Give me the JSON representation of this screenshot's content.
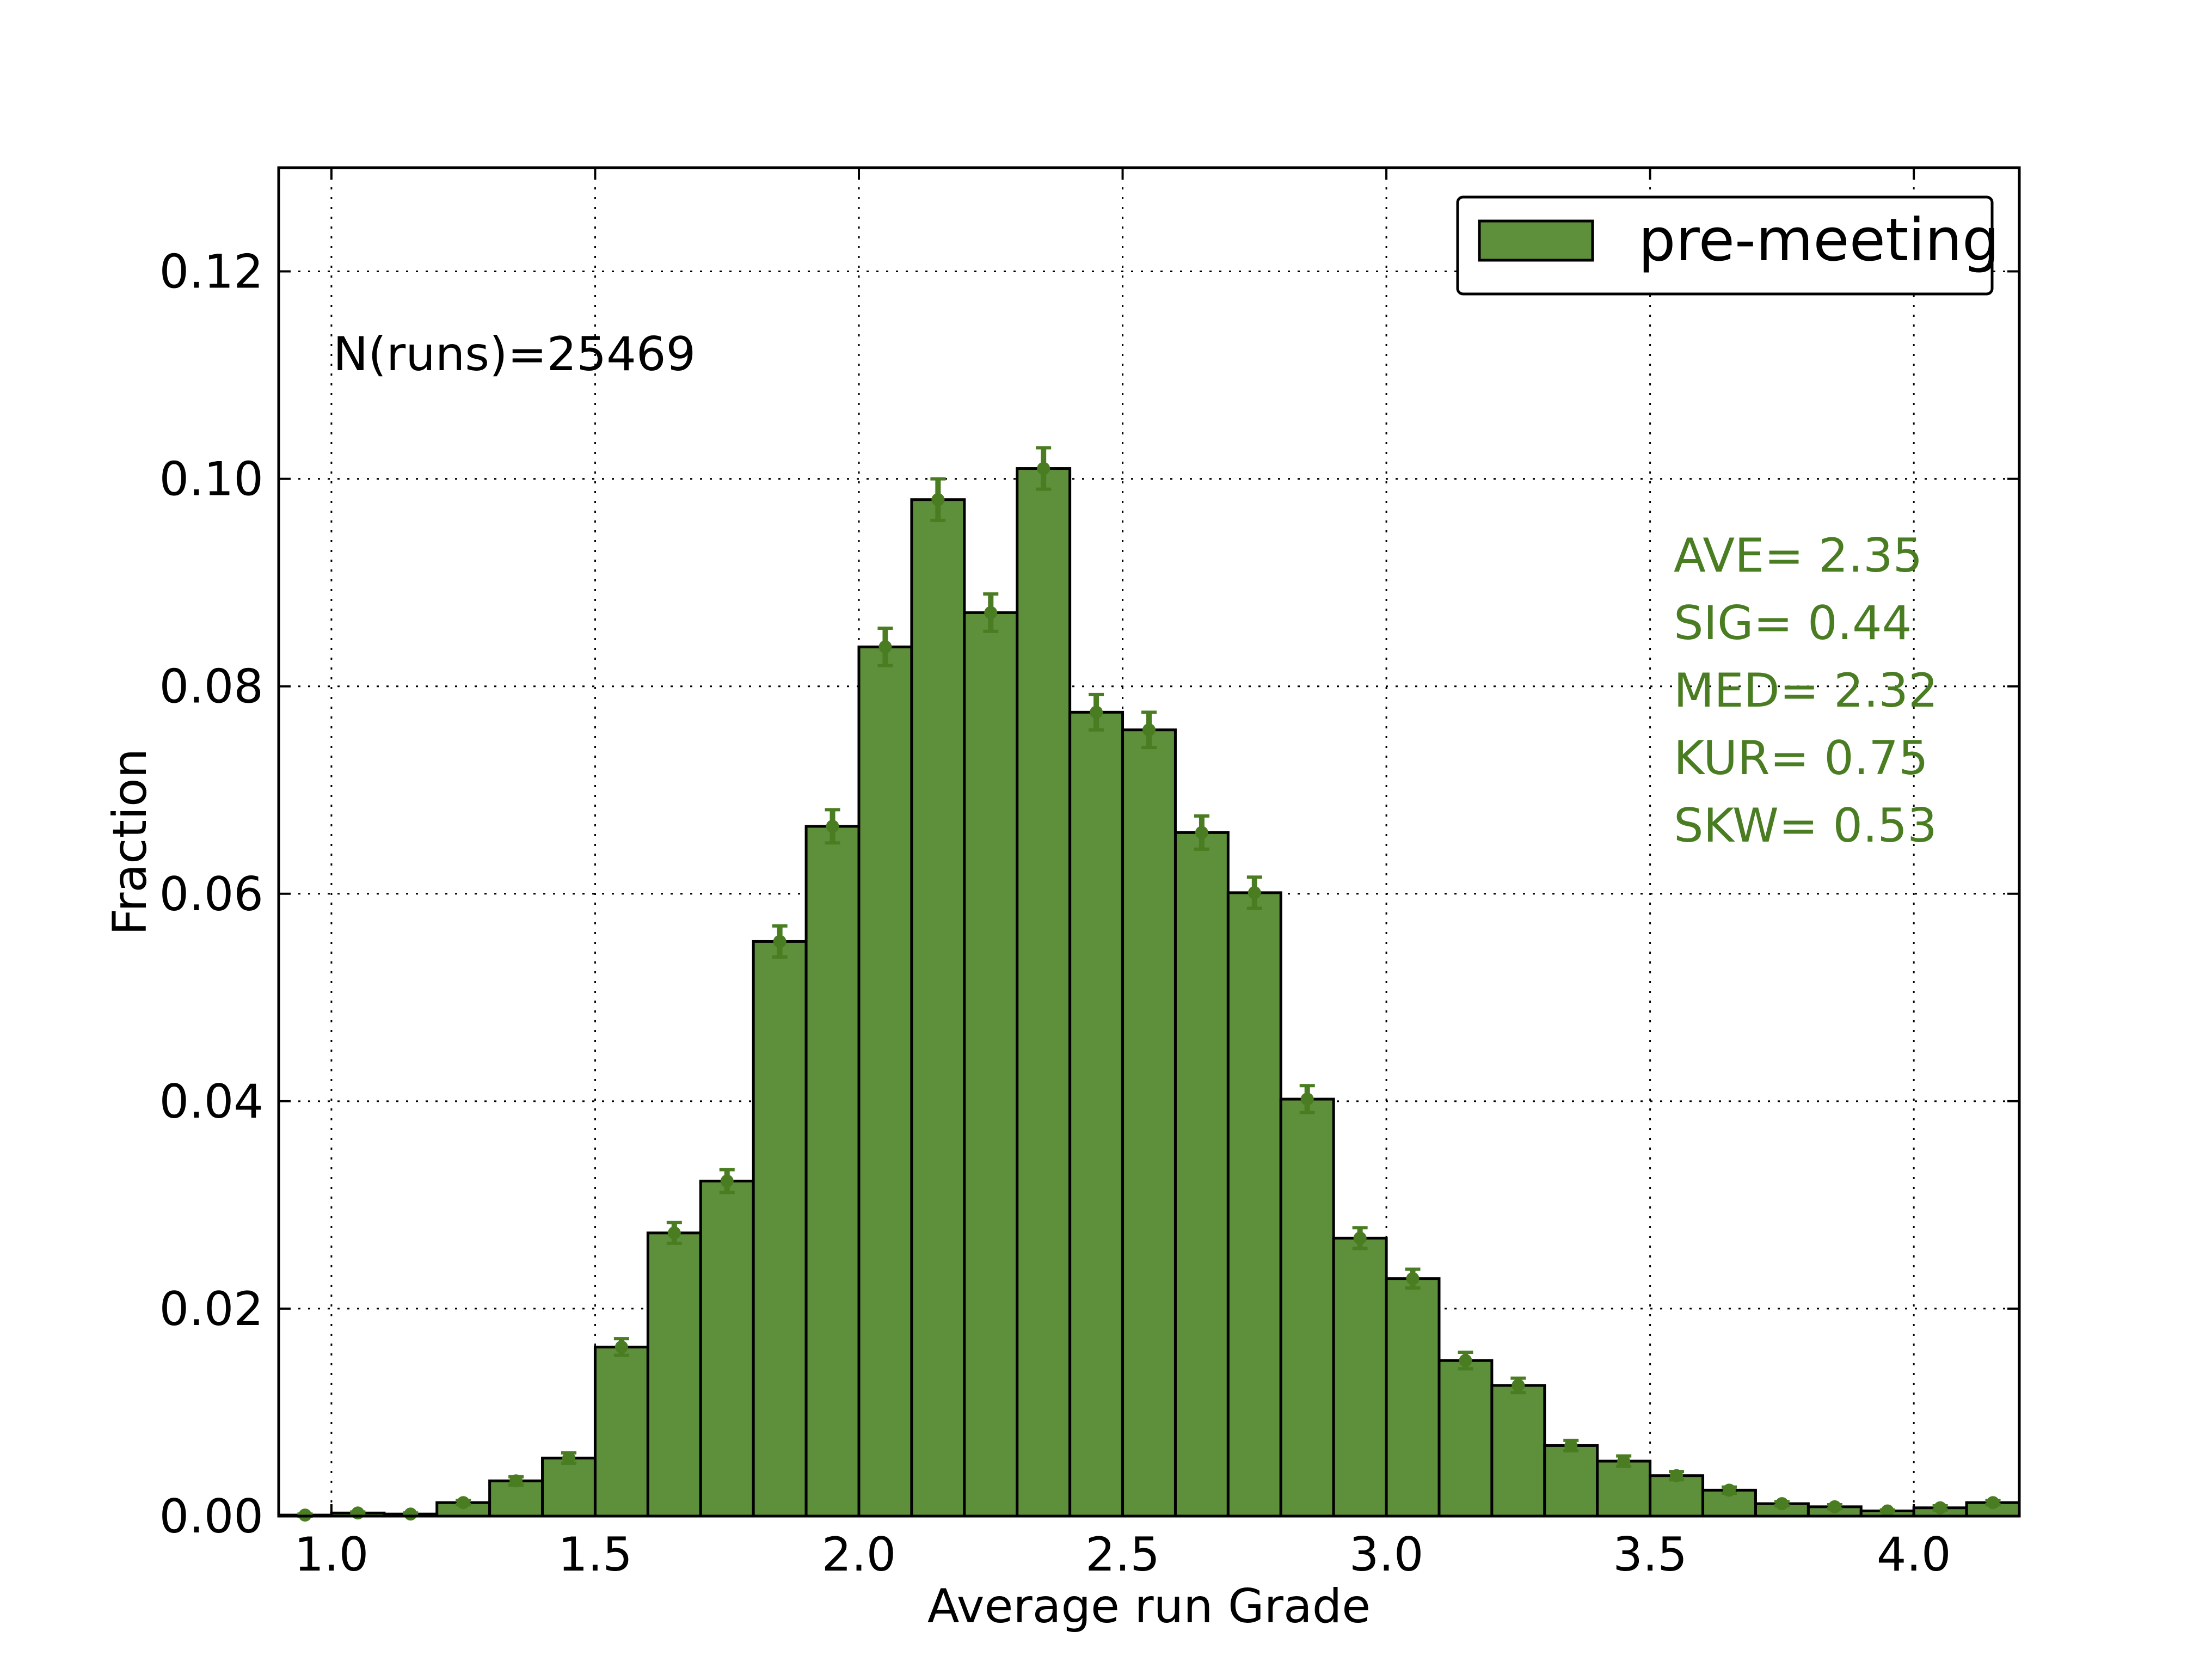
{
  "chart_data": {
    "type": "bar",
    "title": "",
    "xlabel": "Average run Grade",
    "ylabel": "Fraction",
    "xlim": [
      0.9,
      4.2
    ],
    "ylim": [
      0.0,
      0.13
    ],
    "xticks": [
      1.0,
      1.5,
      2.0,
      2.5,
      3.0,
      3.5,
      4.0
    ],
    "xtick_labels": [
      "1.0",
      "1.5",
      "2.0",
      "2.5",
      "3.0",
      "3.5",
      "4.0"
    ],
    "yticks": [
      0.0,
      0.02,
      0.04,
      0.06,
      0.08,
      0.1,
      0.12
    ],
    "ytick_labels": [
      "0.00",
      "0.02",
      "0.04",
      "0.06",
      "0.08",
      "0.10",
      "0.12"
    ],
    "grid": true,
    "grid_style": "dotted",
    "legend_position": "top-right",
    "bin_width": 0.1,
    "series": [
      {
        "name": "pre-meeting",
        "color": "#5e8f3a",
        "errorbar_color": "#4a7d22",
        "bin_left_edges": [
          0.9,
          1.0,
          1.1,
          1.2,
          1.3,
          1.4,
          1.5,
          1.6,
          1.7,
          1.8,
          1.9,
          2.0,
          2.1,
          2.2,
          2.3,
          2.4,
          2.5,
          2.6,
          2.7,
          2.8,
          2.9,
          3.0,
          3.1,
          3.2,
          3.3,
          3.4,
          3.5,
          3.6,
          3.7,
          3.8,
          3.9,
          4.0,
          4.1
        ],
        "values": [
          0.0001,
          0.0003,
          0.0002,
          0.0013,
          0.0034,
          0.0056,
          0.0163,
          0.0273,
          0.0323,
          0.0554,
          0.0665,
          0.0838,
          0.098,
          0.0871,
          0.101,
          0.0775,
          0.0758,
          0.0659,
          0.0601,
          0.0402,
          0.0268,
          0.0229,
          0.015,
          0.0126,
          0.0068,
          0.0053,
          0.0039,
          0.0025,
          0.0012,
          0.0009,
          0.0005,
          0.0008,
          0.0013
        ],
        "errors": [
          0.0001,
          0.0001,
          0.0001,
          0.0002,
          0.0004,
          0.0005,
          0.0008,
          0.001,
          0.0011,
          0.0015,
          0.0016,
          0.0018,
          0.002,
          0.0018,
          0.002,
          0.0017,
          0.0017,
          0.0016,
          0.0015,
          0.0013,
          0.001,
          0.0009,
          0.0008,
          0.0007,
          0.0005,
          0.0005,
          0.0004,
          0.0003,
          0.0002,
          0.0002,
          0.0001,
          0.0002,
          0.0002
        ]
      }
    ],
    "annotations": {
      "n_runs": "N(runs)=25469",
      "stats": [
        "AVE= 2.35",
        "SIG= 0.44",
        "MED= 2.32",
        "KUR= 0.75",
        "SKW= 0.53"
      ],
      "stats_color": "#4a7d22"
    }
  }
}
